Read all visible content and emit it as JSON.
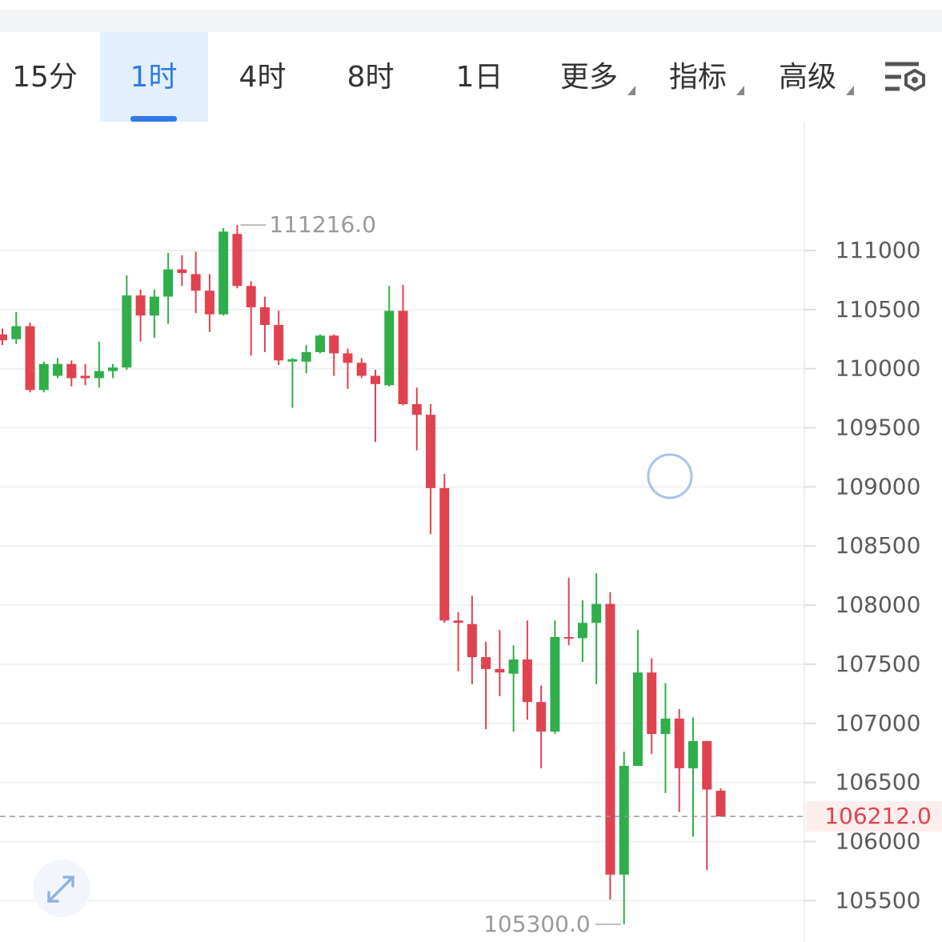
{
  "tabs": [
    "15分",
    "1时",
    "4时",
    "8时",
    "1日",
    "更多",
    "指标",
    "高级"
  ],
  "active_tab_index": 1,
  "chart_data": {
    "type": "candlestick",
    "up_color": "#2fae4a",
    "down_color": "#e0424f",
    "open": [
      110290,
      110250,
      110360,
      109820,
      109940,
      110040,
      109940,
      109920,
      109980,
      110010,
      110620,
      110450,
      110610,
      110840,
      110800,
      110660,
      110460,
      111140,
      110700,
      110520,
      110370,
      110060,
      110060,
      110140,
      110280,
      110130,
      110050,
      109940,
      109860,
      110490,
      109700,
      109610,
      108990,
      107870,
      107840,
      107560,
      107460,
      107420,
      107540,
      107180,
      106930,
      107730,
      107720,
      107850,
      108010,
      105720,
      106640,
      107430,
      106910,
      107040,
      106620,
      106850,
      106430
    ],
    "high": [
      110340,
      110480,
      110390,
      110060,
      110090,
      110070,
      110040,
      110230,
      110040,
      110790,
      110670,
      110670,
      110980,
      110960,
      110990,
      110800,
      111190,
      111216,
      110740,
      110610,
      110490,
      110090,
      110200,
      110290,
      110290,
      110170,
      110090,
      109990,
      110700,
      110710,
      109840,
      109700,
      109110,
      107940,
      108080,
      107690,
      107790,
      107660,
      107870,
      107320,
      107870,
      108230,
      108040,
      108270,
      108110,
      106760,
      107790,
      107550,
      107340,
      107120,
      107050,
      106850,
      106450
    ],
    "low": [
      110200,
      110210,
      109800,
      109800,
      109920,
      109850,
      109860,
      109840,
      109920,
      109990,
      110230,
      110260,
      110380,
      110700,
      110470,
      110310,
      110450,
      110680,
      110110,
      110140,
      110030,
      109670,
      109960,
      110130,
      109940,
      109830,
      109920,
      109380,
      109850,
      109690,
      109310,
      108600,
      107850,
      107440,
      107330,
      106950,
      107230,
      106930,
      107030,
      106620,
      106910,
      107660,
      107520,
      107330,
      105510,
      105300,
      106640,
      106740,
      106410,
      106250,
      106040,
      105760,
      106212
    ],
    "close": [
      110240,
      110360,
      109820,
      110040,
      110040,
      109920,
      109920,
      109980,
      110010,
      110620,
      110450,
      110610,
      110840,
      110810,
      110660,
      110460,
      111160,
      110700,
      110520,
      110370,
      110070,
      110080,
      110140,
      110280,
      110130,
      110050,
      109940,
      109870,
      110490,
      109700,
      109610,
      108990,
      107870,
      107850,
      107560,
      107460,
      107430,
      107540,
      107180,
      106930,
      107730,
      107720,
      107850,
      108010,
      105720,
      106640,
      107430,
      106910,
      107040,
      106620,
      106850,
      106440,
      106212
    ],
    "ylim": [
      105150,
      112090
    ],
    "yticks": [
      105500,
      106000,
      106500,
      107000,
      107500,
      108000,
      108500,
      109000,
      109500,
      110000,
      110500,
      111000
    ],
    "grid": true,
    "annotations": [
      {
        "value": 111216,
        "label": "111216.0"
      },
      {
        "value": 105300,
        "label": "105300.0"
      }
    ],
    "last_price": {
      "value": 106212,
      "label": "106212.0"
    }
  }
}
